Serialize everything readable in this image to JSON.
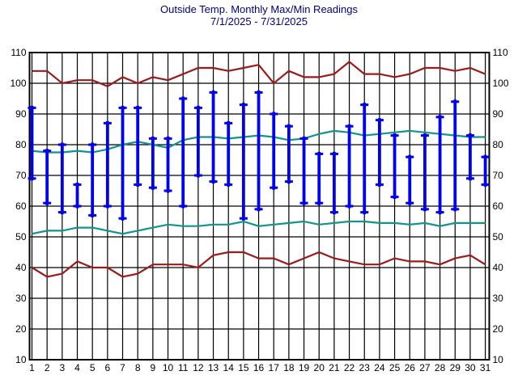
{
  "title": "Outside Temp. Monthly Max/Min Readings",
  "subtitle": "7/1/2025 - 7/31/2025",
  "colors": {
    "title_text": "#000080",
    "axis_text": "#000000",
    "grid": "#000000",
    "daily_bar_blue": "#0000ee",
    "record_line_dark_red": "#9b1a1a",
    "average_line_teal": "#0f948f",
    "background": "#ffffff"
  },
  "chart_data": {
    "type": "bar",
    "subtype": "daily high/low range bars with record and average reference lines",
    "title": "Outside Temp. Monthly Max/Min Readings",
    "subtitle": "7/1/2025 - 7/31/2025",
    "xlabel": "",
    "ylabel": "",
    "ylim": [
      10,
      110
    ],
    "ytick_interval": 10,
    "y_ticks": [
      110,
      100,
      90,
      80,
      70,
      60,
      50,
      40,
      30,
      20,
      10
    ],
    "y_axis_sides": "both",
    "grid": true,
    "legend_position": "none",
    "x": [
      1,
      2,
      3,
      4,
      5,
      6,
      7,
      8,
      9,
      10,
      11,
      12,
      13,
      14,
      15,
      16,
      17,
      18,
      19,
      20,
      21,
      22,
      23,
      24,
      25,
      26,
      27,
      28,
      29,
      30,
      31
    ],
    "series": [
      {
        "name": "daily_max",
        "style": "hilo-bar-top",
        "color": "#0000ee",
        "values": [
          92,
          78,
          80,
          67,
          80,
          87,
          92,
          92,
          82,
          82,
          95,
          92,
          97,
          87,
          93,
          97,
          90,
          86,
          82,
          77,
          77,
          86,
          93,
          88,
          83,
          76,
          83,
          89,
          94,
          83,
          76
        ]
      },
      {
        "name": "daily_min",
        "style": "hilo-bar-bottom",
        "color": "#0000ee",
        "values": [
          69,
          61,
          58,
          60,
          57,
          60,
          56,
          67,
          66,
          65,
          60,
          70,
          68,
          67,
          56,
          59,
          66,
          68,
          61,
          61,
          58,
          60,
          58,
          67,
          63,
          61,
          59,
          58,
          59,
          69,
          67
        ]
      },
      {
        "name": "upper_dark_red_line",
        "style": "line",
        "color": "#9b1a1a",
        "values": [
          104,
          104,
          100,
          101,
          101,
          99,
          102,
          100,
          102,
          101,
          103,
          105,
          105,
          104,
          105,
          106,
          100,
          104,
          102,
          102,
          103,
          107,
          103,
          103,
          102,
          103,
          105,
          105,
          104,
          105,
          103
        ]
      },
      {
        "name": "upper_teal_line",
        "style": "line",
        "color": "#0f948f",
        "values": [
          78,
          77.5,
          77.5,
          78,
          77.5,
          78.5,
          80,
          81,
          80,
          79,
          81.5,
          82.5,
          82.5,
          82,
          82.5,
          83,
          82.5,
          81.5,
          82,
          83.5,
          84.5,
          84,
          83,
          83.5,
          84,
          84.5,
          84,
          83.5,
          83,
          82.5,
          82.5
        ]
      },
      {
        "name": "lower_teal_line",
        "style": "line",
        "color": "#0f948f",
        "values": [
          51,
          52,
          52,
          53,
          53,
          52,
          51,
          52,
          53,
          54,
          53.5,
          53.5,
          54,
          54,
          55,
          53.5,
          54,
          54.5,
          55,
          54,
          54.5,
          55,
          55,
          54.5,
          54.5,
          54,
          54.5,
          53.5,
          54.5,
          54.5,
          54.5
        ]
      },
      {
        "name": "lower_dark_red_line",
        "style": "line",
        "color": "#9b1a1a",
        "values": [
          40,
          37,
          38,
          42,
          40,
          40,
          37,
          38,
          41,
          41,
          41,
          40,
          44,
          45,
          45,
          43,
          43,
          41,
          43,
          45,
          43,
          42,
          41,
          41,
          43,
          42,
          42,
          41,
          43,
          44,
          41
        ]
      }
    ]
  }
}
